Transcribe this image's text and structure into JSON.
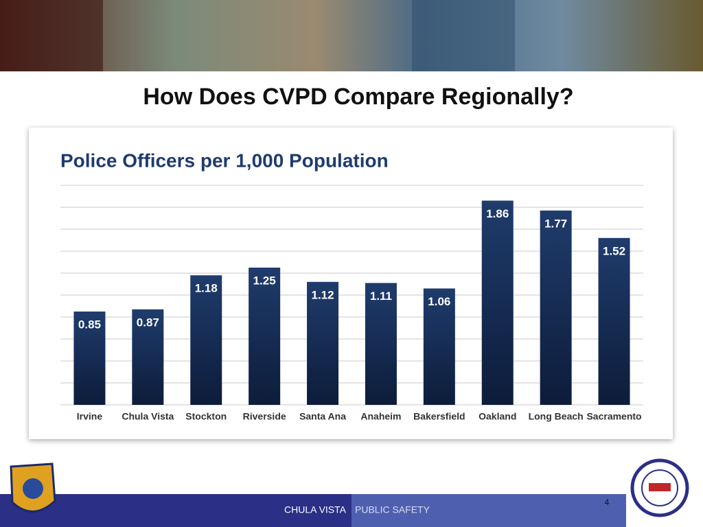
{
  "slide": {
    "title": "How Does CVPD Compare Regionally?",
    "footer_left": "CHULA VISTA",
    "footer_right": "PUBLIC SAFETY",
    "page_number": 4
  },
  "chart_data": {
    "type": "bar",
    "title": "Police Officers per 1,000 Population",
    "categories": [
      "Irvine",
      "Chula Vista",
      "Stockton",
      "Riverside",
      "Santa Ana",
      "Anaheim",
      "Bakersfield",
      "Oakland",
      "Long Beach",
      "Sacramento"
    ],
    "values": [
      0.85,
      0.87,
      1.18,
      1.25,
      1.12,
      1.11,
      1.06,
      1.86,
      1.77,
      1.52
    ],
    "color": "#1b3764",
    "ylim": [
      0,
      2
    ],
    "yticks": [
      0,
      0.2,
      0.4,
      0.6,
      0.8,
      1,
      1.2,
      1.4,
      1.6,
      1.8,
      2
    ],
    "grid": true
  }
}
